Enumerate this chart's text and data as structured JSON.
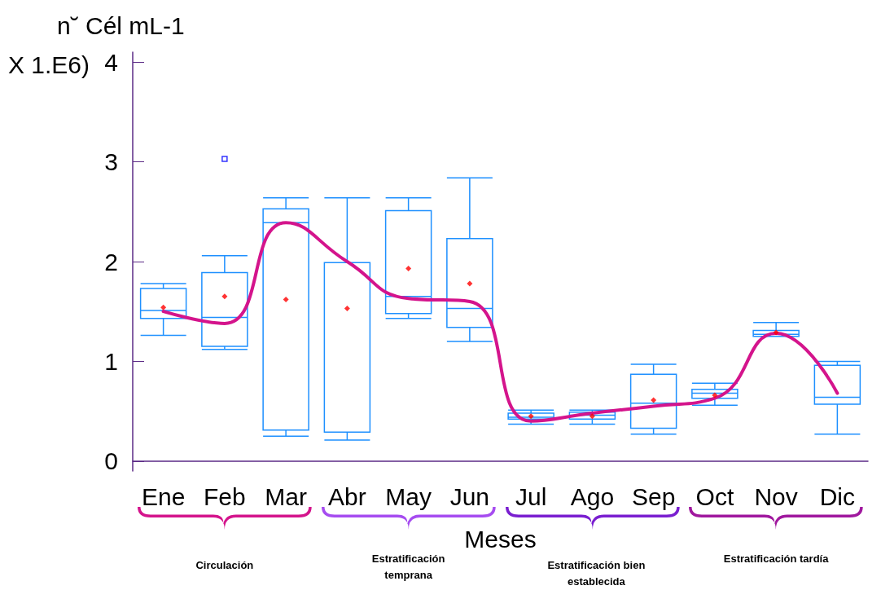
{
  "chart_data": {
    "type": "box",
    "ylabel": "n˘ Cél mL-1\nX 1.E6)",
    "xlabel": "Meses",
    "categories": [
      "Ene",
      "Feb",
      "Mar",
      "Abr",
      "May",
      "Jun",
      "Jul",
      "Ago",
      "Sep",
      "Oct",
      "Nov",
      "Dic"
    ],
    "ylim": [
      -0.1,
      4.1
    ],
    "yticks": [
      0,
      1,
      2,
      3,
      4
    ],
    "grid": false,
    "series": [
      {
        "color": "#1e90ff",
        "boxes": [
          {
            "low": 1.26,
            "q1": 1.43,
            "median": 1.51,
            "q3": 1.73,
            "high": 1.78,
            "mean": 1.54
          },
          {
            "low": 1.12,
            "q1": 1.15,
            "median": 1.44,
            "q3": 1.89,
            "high": 2.06,
            "mean": 1.65,
            "outliers": [
              3.03
            ]
          },
          {
            "low": 0.25,
            "q1": 0.31,
            "median": 2.39,
            "q3": 2.53,
            "high": 2.64,
            "mean": 1.62
          },
          {
            "low": 0.21,
            "q1": 0.29,
            "median": 1.99,
            "q3": 1.99,
            "high": 2.64,
            "mean": 1.53
          },
          {
            "low": 1.43,
            "q1": 1.48,
            "median": 1.65,
            "q3": 2.51,
            "high": 2.64,
            "mean": 1.93
          },
          {
            "low": 1.2,
            "q1": 1.34,
            "median": 1.53,
            "q3": 2.23,
            "high": 2.84,
            "mean": 1.78
          },
          {
            "low": 0.37,
            "q1": 0.42,
            "median": 0.44,
            "q3": 0.48,
            "high": 0.51,
            "mean": 0.45
          },
          {
            "low": 0.37,
            "q1": 0.42,
            "median": 0.46,
            "q3": 0.49,
            "high": 0.51,
            "mean": 0.45
          },
          {
            "low": 0.27,
            "q1": 0.33,
            "median": 0.58,
            "q3": 0.87,
            "high": 0.97,
            "mean": 0.61
          },
          {
            "low": 0.56,
            "q1": 0.63,
            "median": 0.68,
            "q3": 0.72,
            "high": 0.78,
            "mean": 0.66
          },
          {
            "low": 1.25,
            "q1": 1.25,
            "median": 1.27,
            "q3": 1.31,
            "high": 1.39,
            "mean": 1.29
          },
          {
            "low": 0.27,
            "q1": 0.57,
            "median": 0.64,
            "q3": 0.96,
            "high": 1.0
          }
        ]
      },
      {
        "type": "line",
        "color": "#d4148c",
        "values": [
          1.5,
          1.38,
          2.39,
          2.0,
          1.63,
          1.6,
          0.4,
          0.48,
          0.55,
          0.63,
          1.28,
          0.68
        ]
      }
    ],
    "annotations": [
      "Circulación",
      "Estratificación temprana",
      "Estratificación bien establecida",
      "Estratificación tardía"
    ]
  }
}
